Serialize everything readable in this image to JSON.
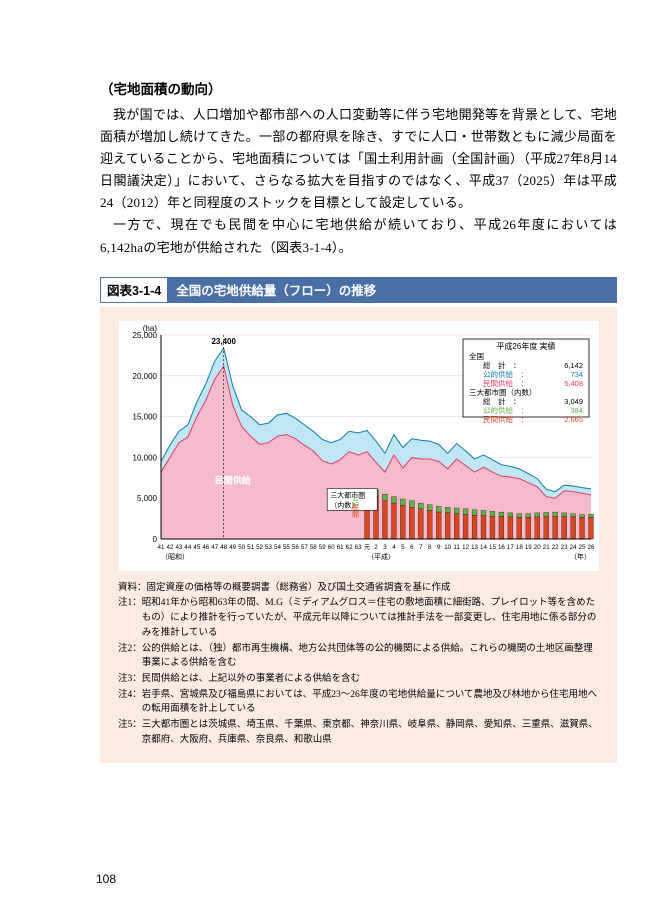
{
  "section_title": "（宅地面積の動向）",
  "paragraphs": [
    "我が国では、人口増加や都市部への人口変動等に伴う宅地開発等を背景として、宅地面積が増加し続けてきた。一部の都府県を除き、すでに人口・世帯数ともに減少局面を迎えていることから、宅地面積については「国土利用計画（全国計画）（平成27年8月14日閣議決定）」において、さらなる拡大を目指すのではなく、平成37（2025）年は平成24（2012）年と同程度のストックを目標として設定している。",
    "一方で、現在でも民間を中心に宅地供給が続いており、平成26年度においては6,142haの宅地が供給された（図表3-1-4）。"
  ],
  "figure": {
    "num": "図表3-1-4",
    "title": "全国の宅地供給量（フロー）の推移",
    "y_unit": "(ha)",
    "y_max": 25000,
    "y_ticks": [
      0,
      5000,
      10000,
      15000,
      20000,
      25000
    ],
    "x_labels": [
      "41",
      "42",
      "43",
      "44",
      "45",
      "46",
      "47",
      "48",
      "49",
      "50",
      "51",
      "52",
      "53",
      "54",
      "55",
      "56",
      "57",
      "58",
      "59",
      "60",
      "61",
      "62",
      "63",
      "元",
      "2",
      "3",
      "4",
      "5",
      "6",
      "7",
      "8",
      "9",
      "10",
      "11",
      "12",
      "13",
      "14",
      "15",
      "16",
      "17",
      "18",
      "19",
      "20",
      "21",
      "22",
      "23",
      "24",
      "25",
      "26"
    ],
    "x_era_marks": [
      {
        "idx": 0,
        "label": "（昭和）"
      },
      {
        "idx": 23,
        "label": "（平成）"
      },
      {
        "idx": 48,
        "label": "（年）"
      }
    ],
    "peak": {
      "idx": 7,
      "value": 23400,
      "label": "23,400"
    },
    "total": [
      9500,
      11500,
      13200,
      14000,
      16800,
      19000,
      21800,
      23400,
      18800,
      15800,
      15000,
      14000,
      14200,
      15200,
      15400,
      14800,
      14000,
      13200,
      12200,
      11800,
      12200,
      13200,
      13000,
      13300,
      12000,
      10500,
      12800,
      11200,
      12300,
      12100,
      12000,
      11600,
      10500,
      11700,
      10800,
      9800,
      10300,
      9700,
      9100,
      8900,
      8600,
      8000,
      7400,
      6100,
      5800,
      6600,
      6500,
      6300,
      6142
    ],
    "private": [
      8200,
      10000,
      11800,
      12500,
      15000,
      17000,
      19600,
      21200,
      16400,
      13800,
      12600,
      11600,
      11800,
      12600,
      12800,
      12300,
      11500,
      10800,
      9600,
      9200,
      9700,
      10700,
      10300,
      10700,
      9400,
      8200,
      10300,
      8700,
      10000,
      9800,
      9800,
      9500,
      8600,
      9800,
      9000,
      8200,
      8800,
      8200,
      7700,
      7600,
      7400,
      6900,
      6400,
      5200,
      5000,
      5900,
      5800,
      5600,
      5408
    ],
    "metro_total": [
      5800,
      6000,
      5500,
      5200,
      4900,
      4700,
      4400,
      4200,
      4000,
      3900,
      3800,
      3700,
      3600,
      3500,
      3400,
      3300,
      3200,
      3100,
      3100,
      3200,
      3250,
      3300,
      3200,
      3100,
      3000,
      3049
    ],
    "metro_private": [
      5000,
      5200,
      4700,
      4400,
      4100,
      3900,
      3700,
      3500,
      3300,
      3200,
      3100,
      3000,
      2900,
      2850,
      2800,
      2750,
      2700,
      2650,
      2650,
      2700,
      2750,
      2800,
      2750,
      2700,
      2650,
      2665
    ],
    "metro_start_idx": 23,
    "series_labels": {
      "public": "公的供給",
      "private": "民間供給",
      "metro_box": "三大都市圏\n（内数）",
      "metro_side": "公的\n民間"
    },
    "legend": {
      "title": "平成26年度 実績",
      "zenkoku": "全国",
      "zenkoku_total_lbl": "総　計",
      "zenkoku_total_val": "6,142",
      "zenkoku_pub_lbl": "公的供給",
      "zenkoku_pub_val": "734",
      "zenkoku_pri_lbl": "民間供給",
      "zenkoku_pri_val": "5,408",
      "metro": "三大都市圏（内数）",
      "metro_total_lbl": "総　計",
      "metro_total_val": "3,049",
      "metro_pub_lbl": "公的供給",
      "metro_pub_val": "384",
      "metro_pri_lbl": "民間供給",
      "metro_pri_val": "2,665"
    },
    "colors": {
      "panel_bg": "#fbece2",
      "chart_bg": "#ffffff",
      "axis": "#000000",
      "grid": "#cfd5dc",
      "public_fill": "#bfe6f2",
      "public_stroke": "#0f7aa6",
      "private_fill": "#f7b9cc",
      "private_stroke": "#e33a6d",
      "metro_bar_pub": "#5fb34a",
      "metro_bar_pri": "#d6481f",
      "legend_border": "#000000",
      "text": "#000000"
    },
    "notes": [
      {
        "lbl": "資料：",
        "txt": "固定資産の価格等の概要調書（総務省）及び国土交通省調査を基に作成"
      },
      {
        "lbl": "注1：",
        "txt": "昭和41年から昭和63年の間、M.G（ミディアムグロス＝住宅の敷地面積に細街路、プレイロット等を含めたもの）により推計を行っていたが、平成元年以降については推計手法を一部変更し、住宅用地に係る部分のみを推計している"
      },
      {
        "lbl": "注2：",
        "txt": "公的供給とは、（独）都市再生機構、地方公共団体等の公的機関による供給。これらの機関の土地区画整理事業による供給を含む"
      },
      {
        "lbl": "注3：",
        "txt": "民間供給とは、上記以外の事業者による供給を含む"
      },
      {
        "lbl": "注4：",
        "txt": "岩手県、宮城県及び福島県においては、平成23～26年度の宅地供給量について農地及び林地から住宅用地への転用面積を計上している"
      },
      {
        "lbl": "注5：",
        "txt": "三大都市圏とは茨城県、埼玉県、千葉県、東京都、神奈川県、岐阜県、静岡県、愛知県、三重県、滋賀県、京都府、大阪府、兵庫県、奈良県、和歌山県"
      }
    ]
  },
  "page_number": "108"
}
